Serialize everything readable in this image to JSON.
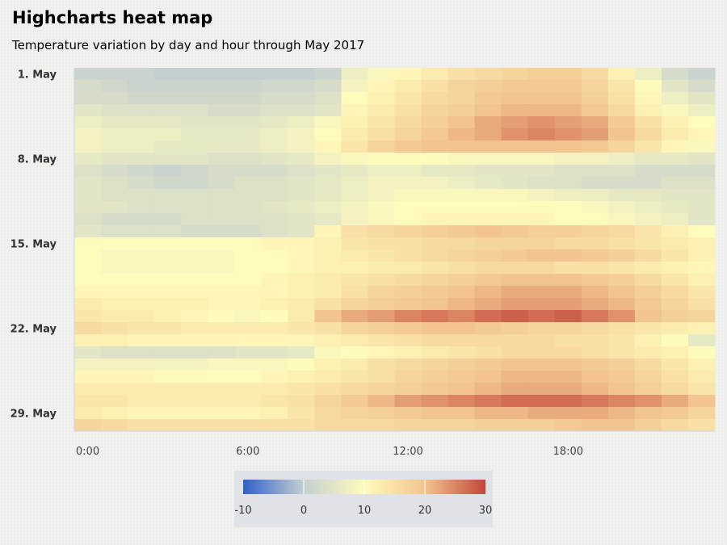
{
  "chart_data": {
    "type": "heatmap",
    "title": "Highcharts heat map",
    "subtitle": "Temperature variation by day and hour through May 2017",
    "x_tick_labels": [
      "0:00",
      "6:00",
      "12:00",
      "18:00"
    ],
    "x_tick_hours": [
      0,
      6,
      12,
      18
    ],
    "y_tick_labels": [
      "1. May",
      "8. May",
      "15. May",
      "22. May",
      "29. May"
    ],
    "y_tick_days": [
      1,
      8,
      15,
      22,
      29
    ],
    "hours": 24,
    "days": 30,
    "color_axis": {
      "min": -10,
      "max": 30,
      "stops": [
        {
          "value": -10,
          "color": "#3060cf"
        },
        {
          "value": 0,
          "color": "#c4cfcf"
        },
        {
          "value": 10,
          "color": "#fffbbc"
        },
        {
          "value": 20,
          "color": "#f2c48f"
        },
        {
          "value": 30,
          "color": "#c4463a"
        }
      ],
      "tick_labels": [
        "-10",
        "0",
        "10",
        "20",
        "30"
      ],
      "tick_values": [
        -10,
        0,
        10,
        20,
        30
      ]
    },
    "rows": [
      {
        "day": 1,
        "temps": [
          1,
          1,
          1,
          0,
          0,
          0,
          0,
          0,
          0,
          1,
          7,
          9,
          11,
          13,
          15,
          16,
          17,
          18,
          18,
          16,
          12,
          7,
          3,
          1
        ]
      },
      {
        "day": 2,
        "temps": [
          3,
          2,
          1,
          1,
          1,
          1,
          1,
          2,
          2,
          3,
          8,
          11,
          13,
          15,
          17,
          18,
          19,
          19,
          19,
          17,
          14,
          10,
          5,
          3
        ]
      },
      {
        "day": 3,
        "temps": [
          3,
          3,
          2,
          2,
          2,
          2,
          2,
          3,
          3,
          4,
          10,
          12,
          14,
          16,
          17,
          19,
          20,
          20,
          20,
          18,
          15,
          11,
          7,
          5
        ]
      },
      {
        "day": 4,
        "temps": [
          5,
          4,
          4,
          4,
          4,
          3,
          3,
          4,
          4,
          5,
          11,
          13,
          15,
          17,
          18,
          20,
          21,
          21,
          21,
          19,
          16,
          12,
          9,
          7
        ]
      },
      {
        "day": 5,
        "temps": [
          7,
          6,
          6,
          6,
          5,
          5,
          5,
          6,
          7,
          9,
          12,
          14,
          16,
          18,
          20,
          22,
          23,
          24,
          23,
          22,
          19,
          15,
          12,
          10
        ]
      },
      {
        "day": 6,
        "temps": [
          8,
          7,
          7,
          7,
          6,
          6,
          6,
          7,
          8,
          10,
          13,
          15,
          17,
          19,
          21,
          22,
          24,
          25,
          24,
          23,
          20,
          16,
          13,
          11
        ]
      },
      {
        "day": 7,
        "temps": [
          8,
          7,
          7,
          6,
          6,
          6,
          6,
          7,
          8,
          11,
          14,
          17,
          19,
          20,
          20,
          20,
          20,
          20,
          20,
          19,
          17,
          14,
          11,
          9
        ]
      },
      {
        "day": 8,
        "temps": [
          6,
          5,
          5,
          5,
          5,
          4,
          4,
          5,
          6,
          8,
          9,
          10,
          10,
          10,
          9,
          9,
          9,
          9,
          8,
          8,
          7,
          6,
          6,
          5
        ]
      },
      {
        "day": 9,
        "temps": [
          4,
          3,
          2,
          1,
          2,
          3,
          3,
          3,
          4,
          5,
          6,
          7,
          7,
          6,
          6,
          5,
          5,
          5,
          4,
          4,
          4,
          3,
          3,
          3
        ]
      },
      {
        "day": 10,
        "temps": [
          5,
          4,
          3,
          2,
          2,
          3,
          4,
          4,
          5,
          6,
          7,
          8,
          8,
          8,
          7,
          6,
          5,
          4,
          4,
          3,
          3,
          3,
          4,
          4
        ]
      },
      {
        "day": 11,
        "temps": [
          5,
          4,
          4,
          4,
          4,
          4,
          4,
          4,
          5,
          6,
          7,
          8,
          9,
          9,
          9,
          9,
          9,
          8,
          7,
          7,
          6,
          6,
          5,
          5
        ]
      },
      {
        "day": 12,
        "temps": [
          5,
          5,
          4,
          4,
          4,
          4,
          4,
          5,
          6,
          7,
          8,
          9,
          10,
          10,
          10,
          10,
          10,
          10,
          10,
          9,
          8,
          7,
          6,
          5
        ]
      },
      {
        "day": 13,
        "temps": [
          4,
          3,
          3,
          3,
          4,
          4,
          4,
          4,
          5,
          6,
          8,
          9,
          10,
          11,
          11,
          11,
          11,
          11,
          10,
          10,
          9,
          8,
          7,
          5
        ]
      },
      {
        "day": 14,
        "temps": [
          5,
          4,
          4,
          4,
          3,
          3,
          3,
          4,
          5,
          11,
          15,
          16,
          17,
          18,
          19,
          20,
          19,
          18,
          18,
          17,
          16,
          14,
          12,
          10
        ]
      },
      {
        "day": 15,
        "temps": [
          10,
          10,
          10,
          10,
          10,
          10,
          10,
          11,
          11,
          12,
          14,
          15,
          15,
          16,
          16,
          17,
          17,
          17,
          16,
          16,
          15,
          14,
          13,
          12
        ]
      },
      {
        "day": 16,
        "temps": [
          10,
          9,
          9,
          9,
          9,
          9,
          10,
          10,
          11,
          12,
          13,
          14,
          15,
          16,
          17,
          18,
          19,
          20,
          20,
          19,
          18,
          16,
          14,
          12
        ]
      },
      {
        "day": 17,
        "temps": [
          10,
          9,
          9,
          9,
          9,
          9,
          10,
          10,
          11,
          12,
          12,
          13,
          13,
          14,
          15,
          16,
          16,
          16,
          15,
          15,
          14,
          13,
          12,
          11
        ]
      },
      {
        "day": 18,
        "temps": [
          10,
          10,
          10,
          10,
          10,
          10,
          10,
          11,
          12,
          13,
          14,
          15,
          16,
          17,
          18,
          19,
          20,
          20,
          20,
          19,
          18,
          16,
          14,
          12
        ]
      },
      {
        "day": 19,
        "temps": [
          11,
          11,
          11,
          11,
          11,
          11,
          11,
          11,
          12,
          13,
          15,
          17,
          18,
          19,
          20,
          21,
          22,
          22,
          22,
          21,
          20,
          18,
          16,
          14
        ]
      },
      {
        "day": 20,
        "temps": [
          13,
          12,
          12,
          12,
          12,
          11,
          11,
          12,
          13,
          15,
          17,
          18,
          19,
          20,
          21,
          22,
          23,
          23,
          23,
          22,
          21,
          19,
          17,
          15
        ]
      },
      {
        "day": 21,
        "temps": [
          14,
          13,
          13,
          12,
          11,
          10,
          9,
          10,
          13,
          20,
          22,
          23,
          25,
          26,
          25,
          27,
          28,
          27,
          28,
          26,
          24,
          20,
          18,
          17
        ]
      },
      {
        "day": 22,
        "temps": [
          16,
          15,
          14,
          14,
          13,
          13,
          13,
          13,
          14,
          15,
          17,
          18,
          19,
          20,
          20,
          19,
          18,
          17,
          17,
          16,
          15,
          14,
          13,
          12
        ]
      },
      {
        "day": 23,
        "temps": [
          12,
          12,
          11,
          11,
          11,
          11,
          11,
          11,
          11,
          12,
          13,
          14,
          15,
          16,
          16,
          16,
          16,
          16,
          15,
          15,
          14,
          12,
          10,
          6
        ]
      },
      {
        "day": 24,
        "temps": [
          5,
          4,
          4,
          4,
          4,
          4,
          5,
          5,
          6,
          9,
          10,
          11,
          12,
          13,
          14,
          15,
          16,
          16,
          16,
          15,
          14,
          13,
          12,
          10
        ]
      },
      {
        "day": 25,
        "temps": [
          8,
          8,
          8,
          8,
          8,
          9,
          9,
          9,
          10,
          12,
          13,
          15,
          16,
          17,
          18,
          19,
          20,
          20,
          20,
          19,
          18,
          16,
          14,
          12
        ]
      },
      {
        "day": 26,
        "temps": [
          11,
          11,
          11,
          10,
          10,
          10,
          10,
          11,
          12,
          13,
          14,
          15,
          17,
          18,
          19,
          20,
          21,
          21,
          21,
          20,
          19,
          17,
          15,
          13
        ]
      },
      {
        "day": 27,
        "temps": [
          13,
          13,
          13,
          13,
          13,
          13,
          13,
          13,
          14,
          15,
          16,
          17,
          18,
          19,
          20,
          21,
          22,
          22,
          22,
          21,
          20,
          18,
          16,
          14
        ]
      },
      {
        "day": 28,
        "temps": [
          14,
          14,
          13,
          13,
          13,
          13,
          13,
          14,
          15,
          17,
          19,
          21,
          23,
          24,
          25,
          26,
          27,
          27,
          27,
          26,
          25,
          24,
          22,
          20
        ]
      },
      {
        "day": 29,
        "temps": [
          13,
          12,
          11,
          11,
          11,
          11,
          11,
          12,
          14,
          16,
          17,
          18,
          19,
          20,
          20,
          21,
          21,
          22,
          22,
          22,
          21,
          20,
          19,
          17
        ]
      },
      {
        "day": 30,
        "temps": [
          17,
          16,
          15,
          15,
          15,
          15,
          15,
          15,
          15,
          16,
          16,
          16,
          17,
          17,
          17,
          18,
          18,
          18,
          19,
          20,
          20,
          18,
          16,
          15
        ]
      }
    ]
  }
}
